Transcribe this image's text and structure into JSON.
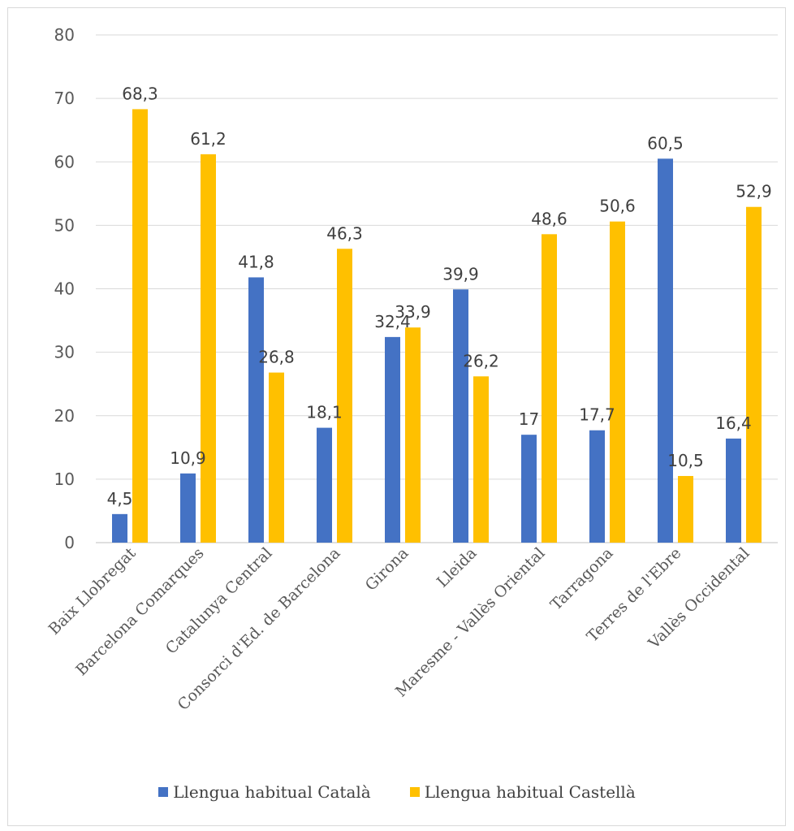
{
  "chart_data": {
    "type": "bar",
    "title": "",
    "xlabel": "",
    "ylabel": "",
    "ylim": [
      0,
      80
    ],
    "yticks": [
      "0",
      "10",
      "20",
      "30",
      "40",
      "50",
      "60",
      "70",
      "80"
    ],
    "grid": true,
    "legend_position": "bottom",
    "categories": [
      "Baix Llobregat",
      "Barcelona Comarques",
      "Catalunya Central",
      "Consorci d'Ed. de Barcelona",
      "Girona",
      "Lleida",
      "Maresme - Vallès Oriental",
      "Tarragona",
      "Terres de l'Ebre",
      "Vallès Occidental"
    ],
    "series": [
      {
        "name": "Llengua habitual Català",
        "color": "#4472c4",
        "values": [
          4.5,
          10.9,
          41.8,
          18.1,
          32.4,
          39.9,
          17,
          17.7,
          60.5,
          16.4
        ],
        "labels": [
          "4,5",
          "10,9",
          "41,8",
          "18,1",
          "32,4",
          "39,9",
          "17",
          "17,7",
          "60,5",
          "16,4"
        ]
      },
      {
        "name": "Llengua habitual Castellà",
        "color": "#ffc000",
        "values": [
          68.3,
          61.2,
          26.8,
          46.3,
          33.9,
          26.2,
          48.6,
          50.6,
          10.5,
          52.9
        ],
        "labels": [
          "68,3",
          "61,2",
          "26,8",
          "46,3",
          "33,9",
          "26,2",
          "48,6",
          "50,6",
          "10,5",
          "52,9"
        ]
      }
    ]
  }
}
